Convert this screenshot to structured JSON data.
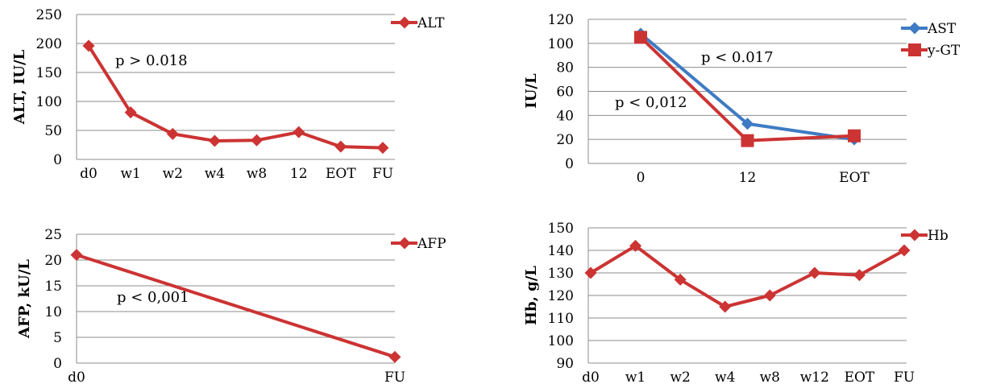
{
  "chart_data": [
    {
      "id": "alt",
      "type": "line",
      "ylabel": "ALT, IU/L",
      "categories": [
        "d0",
        "w1",
        "w2",
        "w4",
        "w8",
        "12",
        "EOT",
        "FU"
      ],
      "ylim": [
        0,
        250
      ],
      "yticks": [
        0,
        50,
        100,
        150,
        200,
        250
      ],
      "grid": true,
      "legend_position": "top-right",
      "series": [
        {
          "name": "ALT",
          "color": "#cc3333",
          "marker": "diamond",
          "values": [
            196,
            81,
            44,
            32,
            33,
            47,
            22,
            20
          ]
        }
      ],
      "annotations": [
        "p > 0.018"
      ]
    },
    {
      "id": "ast-ggt",
      "type": "line",
      "ylabel": "IU/L",
      "categories": [
        "0",
        "12",
        "EOT"
      ],
      "ylim": [
        0,
        120
      ],
      "yticks": [
        0,
        20,
        40,
        60,
        80,
        100,
        120
      ],
      "grid": true,
      "legend_position": "top-right",
      "series": [
        {
          "name": "AST",
          "color": "#3e7bc4",
          "marker": "diamond",
          "values": [
            108,
            33,
            20
          ]
        },
        {
          "name": "y-GT",
          "color": "#cc3333",
          "marker": "square",
          "values": [
            105,
            19,
            23
          ]
        }
      ],
      "annotations": [
        "p < 0.017",
        "p < 0,012"
      ]
    },
    {
      "id": "afp",
      "type": "line",
      "ylabel": "AFP, kU/L",
      "categories": [
        "d0",
        "FU"
      ],
      "ylim": [
        0,
        25
      ],
      "yticks": [
        0,
        5,
        10,
        15,
        20,
        25
      ],
      "grid": true,
      "legend_position": "top-right",
      "series": [
        {
          "name": "AFP",
          "color": "#cc3333",
          "marker": "diamond",
          "values": [
            21,
            1.2
          ]
        }
      ],
      "annotations": [
        "p < 0,001"
      ]
    },
    {
      "id": "hb",
      "type": "line",
      "ylabel": "Hb, g/L",
      "categories": [
        "d0",
        "w1",
        "w2",
        "w4",
        "w8",
        "w12",
        "EOT",
        "FU"
      ],
      "ylim": [
        90,
        150
      ],
      "yticks": [
        90,
        100,
        110,
        120,
        130,
        140,
        150
      ],
      "grid": true,
      "legend_position": "top-right",
      "series": [
        {
          "name": "Hb",
          "color": "#cc3333",
          "marker": "diamond",
          "values": [
            130,
            142,
            127,
            115,
            120,
            130,
            129,
            140
          ]
        }
      ],
      "annotations": []
    }
  ]
}
